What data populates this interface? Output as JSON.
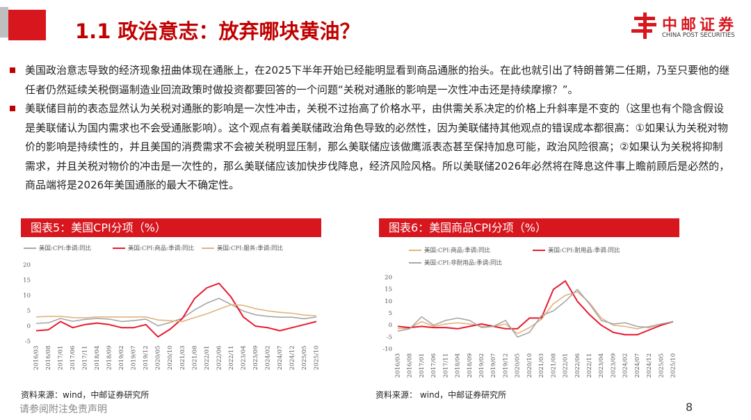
{
  "header": {
    "title": "1.1 政治意志：放弃哪块黄油？",
    "logo_cn": "中邮证券",
    "logo_en": "CHINA POST SECURITIES"
  },
  "bullets": [
    "美国政治意志导致的经济现象扭曲体现在通胀上，在2025下半年开始已经能明显看到商品通胀的抬头。在此也就引出了特朗普第二任期，乃至只要他的继任者仍然延续关税倒逼制造业回流政策时做投资都要回答的一个问题“关税对通胀的影响是一次性冲击还是持续摩擦？”。",
    "美联储目前的表态显然认为关税对通胀的影响是一次性冲击，关税不过抬高了价格水平，由供需关系决定的价格上升斜率是不变的（这里也有个隐含假设是美联储认为国内需求也不会受通胀影响）。这个观点有着美联储政治角色导致的必然性，因为美联储持其他观点的错误成本都很高：①如果认为关税对物价的影响是持续性的，并且美国的消费需求不会被关税明显压制，那么美联储应该做鹰派表态甚至保持加息可能，政治风险很高；②如果认为关税将抑制需求，并且关税对物价的冲击是一次性的，那么美联储应该加快步伐降息，经济风险风格。所以美联储2026年必然将在降息这件事上瞻前顾后是必然的，商品端将是2026年美国通胀的最大不确定性。"
  ],
  "chart_data": [
    {
      "type": "line",
      "title": "图表5：美国CPI分项（%）",
      "source": "资料来源：wind，中邮证券研究所",
      "categories": [
        "2016/03",
        "2016/08",
        "2017/01",
        "2017/06",
        "2017/11",
        "2018/04",
        "2018/09",
        "2019/02",
        "2019/07",
        "2019/12",
        "2020/05",
        "2020/10",
        "2021/03",
        "2021/08",
        "2022/01",
        "2022/06",
        "2022/11",
        "2023/04",
        "2023/09",
        "2024/02",
        "2024/07",
        "2024/12",
        "2025/05",
        "2025/10"
      ],
      "ylim": [
        -5,
        20
      ],
      "yticks": [
        -5,
        0,
        5,
        10,
        15,
        20
      ],
      "series": [
        {
          "name": "美国:CPI:季调:同比",
          "color": "#a6a6a6",
          "values": [
            0.9,
            1.1,
            2.5,
            1.6,
            2.2,
            2.5,
            2.3,
            1.5,
            1.8,
            2.3,
            0.1,
            1.2,
            2.6,
            5.3,
            7.5,
            9.1,
            7.1,
            4.9,
            3.7,
            3.2,
            2.9,
            2.9,
            2.4,
            3.0
          ]
        },
        {
          "name": "美国:CPI:商品:季调:同比",
          "color": "#e8192c",
          "values": [
            -1.5,
            -1.2,
            1.5,
            -0.5,
            0.5,
            1,
            0.5,
            -0.5,
            -0.5,
            0.5,
            -3.5,
            -1,
            2.5,
            9,
            12.5,
            14,
            9.5,
            3,
            0,
            -0.5,
            -1.5,
            -0.5,
            0.5,
            1.5
          ]
        },
        {
          "name": "美国:CPI:服务:季调:同比",
          "color": "#e2b27c",
          "values": [
            3,
            3.2,
            3.2,
            2.8,
            2.7,
            3.0,
            3.0,
            3.0,
            3.0,
            3.0,
            2.0,
            1.8,
            1.5,
            2.8,
            4.0,
            5.5,
            7.0,
            6.8,
            5.7,
            5.0,
            4.5,
            4.2,
            3.6,
            3.4
          ]
        }
      ]
    },
    {
      "type": "line",
      "title": "图表6：美国商品CPI分项（%）",
      "source": "资料来源： wind，中邮证券研究所",
      "categories": [
        "2016/03",
        "2016/08",
        "2017/01",
        "2017/06",
        "2017/11",
        "2018/04",
        "2018/09",
        "2019/02",
        "2019/07",
        "2019/12",
        "2020/05",
        "2020/10",
        "2021/03",
        "2021/08",
        "2022/01",
        "2022/06",
        "2022/11",
        "2023/04",
        "2023/09",
        "2024/02",
        "2024/07",
        "2024/12",
        "2025/05",
        "2025/10"
      ],
      "ylim": [
        -10,
        20
      ],
      "yticks": [
        -10,
        -5,
        0,
        5,
        10,
        15,
        20
      ],
      "series": [
        {
          "name": "美国:CPI:商品:季调:同比",
          "color": "#e2b27c",
          "values": [
            -1.5,
            -1.2,
            1.5,
            -0.5,
            0.5,
            1,
            0.5,
            -0.5,
            -0.5,
            0.5,
            -3.5,
            -1,
            2.5,
            9,
            12.5,
            14,
            9.5,
            3,
            0,
            -0.5,
            -1.5,
            -0.5,
            0.5,
            1.5
          ]
        },
        {
          "name": "美国:CPI:耐用品:季调:同比",
          "color": "#e8192c",
          "values": [
            -0.5,
            -1,
            -0.5,
            -1,
            -1,
            -1.5,
            -0.5,
            0.5,
            -0.5,
            -1.5,
            -1.5,
            3,
            3,
            15,
            18.5,
            10,
            4.5,
            0,
            -3,
            -4,
            -4,
            -2,
            0,
            1.5
          ]
        },
        {
          "name": "美国:CPI:非耐用品:季调:同比",
          "color": "#a6a6a6",
          "values": [
            -2.5,
            -1.5,
            3.5,
            0,
            2,
            3,
            2,
            -1,
            -0.5,
            2,
            -5,
            -3,
            4,
            6,
            10,
            15,
            9,
            2,
            0.5,
            1,
            -0.5,
            -1,
            0.5,
            1.5
          ]
        }
      ]
    }
  ],
  "footer": {
    "disclaimer": "请参阅附注免责声明",
    "page": 8
  }
}
